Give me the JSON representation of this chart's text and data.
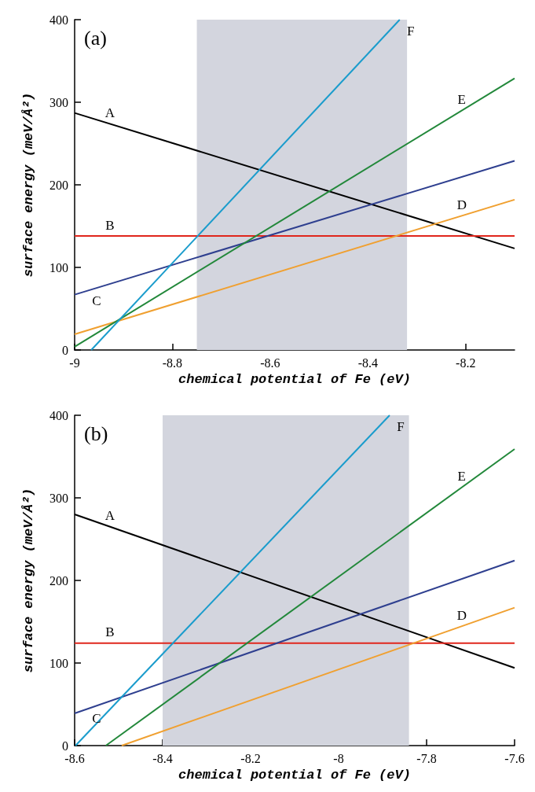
{
  "chart_data": [
    {
      "type": "line",
      "xlabel": "chemical potential of Fe (eV)",
      "ylabel": "surface energy (meV/Å²)",
      "grid": false,
      "marker": "none",
      "line_style": "solid",
      "xlim": [
        -9,
        -8.1
      ],
      "xticks": [
        -9,
        -8.8,
        -8.6,
        -8.4,
        -8.2
      ],
      "ylim": [
        0,
        400
      ],
      "yticks": [
        0,
        100,
        200,
        300,
        400
      ],
      "series": [
        {
          "name": "A",
          "color": "#000000",
          "x": [
            -9,
            -8.1
          ],
          "values": [
            287,
            123
          ]
        },
        {
          "name": "B",
          "color": "#e0261c",
          "x": [
            -9,
            -8.1
          ],
          "values": [
            138,
            138
          ]
        },
        {
          "name": "C",
          "color": "#2e3f8f",
          "x": [
            -9,
            -8.1
          ],
          "values": [
            67,
            229
          ]
        },
        {
          "name": "D",
          "color": "#f0a030",
          "x": [
            -9,
            -8.1
          ],
          "values": [
            19,
            182
          ]
        },
        {
          "name": "E",
          "color": "#22883a",
          "x": [
            -9,
            -8.1
          ],
          "values": [
            4,
            329
          ]
        },
        {
          "name": "F",
          "color": "#1a9ccc",
          "x": [
            -8.966,
            -8.335
          ],
          "values": [
            0,
            400
          ]
        }
      ],
      "bands": [
        {
          "axis": "x",
          "from": -8.75,
          "to": -8.32,
          "color": "#d3d5de"
        }
      ],
      "annotations": [
        "(a)"
      ]
    },
    {
      "type": "line",
      "xlabel": "chemical potential of Fe (eV)",
      "ylabel": "surface energy (meV/Å²)",
      "grid": false,
      "marker": "none",
      "line_style": "solid",
      "xlim": [
        -8.6,
        -7.6
      ],
      "xticks": [
        -8.6,
        -8.4,
        -8.2,
        -8,
        -7.8,
        -7.6
      ],
      "ylim": [
        0,
        400
      ],
      "yticks": [
        0,
        100,
        200,
        300,
        400
      ],
      "series": [
        {
          "name": "A",
          "color": "#000000",
          "x": [
            -8.6,
            -7.6
          ],
          "values": [
            280,
            94
          ]
        },
        {
          "name": "B",
          "color": "#e0261c",
          "x": [
            -8.6,
            -7.6
          ],
          "values": [
            124,
            124
          ]
        },
        {
          "name": "C",
          "color": "#2e3f8f",
          "x": [
            -8.6,
            -7.6
          ],
          "values": [
            39,
            224
          ]
        },
        {
          "name": "D",
          "color": "#f0a030",
          "x": [
            -8.493,
            -7.6
          ],
          "values": [
            0,
            167
          ]
        },
        {
          "name": "E",
          "color": "#22883a",
          "x": [
            -8.529,
            -7.6
          ],
          "values": [
            0,
            359
          ]
        },
        {
          "name": "F",
          "color": "#1a9ccc",
          "x": [
            -8.598,
            -7.884
          ],
          "values": [
            0,
            400
          ]
        }
      ],
      "bands": [
        {
          "axis": "x",
          "from": -8.4,
          "to": -7.84,
          "color": "#d3d5de"
        }
      ],
      "annotations": [
        "(b)"
      ]
    }
  ]
}
